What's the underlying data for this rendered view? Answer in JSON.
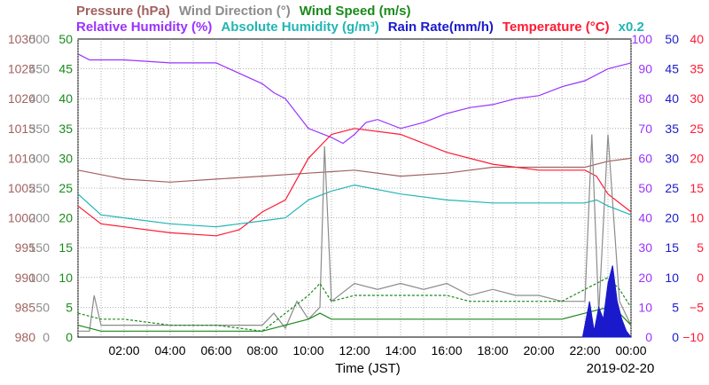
{
  "header": {
    "row1": [
      {
        "text": "Pressure (hPa)",
        "color": "#a0625f"
      },
      {
        "text": "Wind Direction (°)",
        "color": "#8c8c8c"
      },
      {
        "text": "Wind Speed (m/s)",
        "color": "#1a8a1a"
      }
    ],
    "row2": [
      {
        "text": "Relative Humidity (%)",
        "color": "#9933ff"
      },
      {
        "text": "Absolute Humidity (g/m³)",
        "color": "#22b5b5"
      },
      {
        "text": "Rain Rate(mm/h)",
        "color": "#1a1acc"
      },
      {
        "text": "Temperature (°C)",
        "color": "#ff1a33"
      },
      {
        "text": "x0.2",
        "color": "#22b5b5"
      }
    ]
  },
  "chart_data": {
    "type": "line",
    "xlabel": "Time (JST)",
    "date_label": "2019-02-20",
    "x_ticks": [
      "02:00",
      "04:00",
      "06:00",
      "08:00",
      "10:00",
      "12:00",
      "14:00",
      "16:00",
      "18:00",
      "20:00",
      "22:00",
      "00:00"
    ],
    "grid": true,
    "x_range": [
      "2019-02-19 00:00",
      "2019-02-20 00:00"
    ],
    "left_axes": [
      {
        "name": "Pressure (hPa)",
        "color": "#a0625f",
        "ticks": [
          980,
          985,
          990,
          995,
          1000,
          1005,
          1010,
          1015,
          1020,
          1025,
          1030
        ]
      },
      {
        "name": "Wind Direction (°)",
        "color": "#8c8c8c",
        "ticks": [
          0,
          50,
          100,
          150,
          200,
          250,
          300,
          350,
          400,
          450,
          500
        ]
      },
      {
        "name": "Wind Speed (m/s)",
        "color": "#1a8a1a",
        "ticks": [
          0,
          5,
          10,
          15,
          20,
          25,
          30,
          35,
          40,
          45,
          50
        ]
      }
    ],
    "right_axes": [
      {
        "name": "Relative Humidity (%)",
        "color": "#9933ff",
        "ticks": [
          0,
          10,
          20,
          30,
          40,
          50,
          60,
          70,
          80,
          90,
          100
        ]
      },
      {
        "name": "Rain Rate (mm/h)",
        "color": "#1a1acc",
        "ticks": [
          0,
          5,
          10,
          15,
          20,
          25,
          30,
          35,
          40,
          45,
          50
        ]
      },
      {
        "name": "Temperature (°C)",
        "color": "#ff1a33",
        "ticks": [
          -10,
          -5,
          0,
          5,
          10,
          15,
          20,
          25,
          30,
          35,
          40
        ]
      }
    ],
    "series": [
      {
        "name": "Pressure (hPa)",
        "color": "#a0625f",
        "axis": "pressure",
        "x": [
          0,
          2,
          4,
          6,
          8,
          10,
          12,
          14,
          16,
          18,
          20,
          22,
          23,
          24
        ],
        "y": [
          1008,
          1006.5,
          1006,
          1006.5,
          1007,
          1007.5,
          1008,
          1007,
          1007.5,
          1008.5,
          1008.5,
          1008.5,
          1009.5,
          1010
        ]
      },
      {
        "name": "Relative Humidity (%)",
        "color": "#9933ff",
        "axis": "rh",
        "x": [
          0,
          0.5,
          2,
          4,
          6,
          8,
          8.5,
          9,
          10,
          11,
          11.5,
          12,
          12.5,
          13,
          14,
          15,
          16,
          17,
          18,
          19,
          20,
          21,
          22,
          23,
          24
        ],
        "y": [
          95,
          93,
          93,
          92,
          92,
          85,
          82,
          80,
          70,
          67,
          65,
          68,
          72,
          73,
          70,
          72,
          75,
          77,
          78,
          80,
          81,
          84,
          86,
          90,
          92
        ]
      },
      {
        "name": "Temperature (°C)",
        "color": "#ff1a33",
        "axis": "temp",
        "x": [
          0,
          1,
          2,
          4,
          6,
          7,
          8,
          9,
          10,
          11,
          12,
          14,
          16,
          18,
          20,
          22,
          22.5,
          23,
          24
        ],
        "y": [
          12,
          9,
          8.5,
          7.5,
          7,
          8,
          11,
          13,
          20,
          24,
          25,
          24,
          21,
          19,
          18,
          18,
          17,
          14,
          11
        ]
      },
      {
        "name": "Absolute Humidity (g/m³)",
        "color": "#22b5b5",
        "axis": "rh",
        "x": [
          0,
          1,
          2,
          4,
          6,
          7,
          8,
          9,
          10,
          11,
          12,
          14,
          16,
          18,
          20,
          22,
          22.5,
          23,
          24
        ],
        "y": [
          48,
          41,
          40,
          38,
          37,
          38,
          39,
          40,
          46,
          49,
          51,
          48,
          46,
          45,
          45,
          45,
          46,
          44,
          41
        ]
      },
      {
        "name": "Wind Direction (°)",
        "color": "#8c8c8c",
        "axis": "wdir",
        "x": [
          0,
          0.5,
          0.7,
          1,
          4,
          6,
          8,
          8.5,
          9,
          9.5,
          10,
          10.5,
          10.7,
          11,
          12,
          13,
          14,
          15,
          16,
          17,
          18,
          19,
          20,
          21,
          22,
          22.3,
          22.6,
          23,
          23.5,
          24
        ],
        "y": [
          10,
          10,
          70,
          20,
          20,
          20,
          20,
          40,
          15,
          60,
          30,
          50,
          320,
          60,
          90,
          80,
          90,
          80,
          90,
          70,
          80,
          70,
          70,
          60,
          60,
          340,
          40,
          340,
          60,
          20
        ]
      },
      {
        "name": "Wind Speed (m/s)",
        "color": "#1a8a1a",
        "axis": "wspd",
        "x": [
          0,
          1,
          2,
          4,
          6,
          8,
          9,
          10,
          10.5,
          11,
          12,
          13,
          14,
          15,
          16,
          17,
          18,
          19,
          20,
          21,
          22,
          23,
          23.5,
          24
        ],
        "y": [
          2,
          1,
          1,
          1,
          1,
          1,
          2,
          3,
          4,
          3,
          3,
          3,
          3,
          3,
          3,
          3,
          3,
          3,
          3,
          3,
          4,
          5,
          4,
          2
        ]
      },
      {
        "name": "Wind Speed gust (m/s)",
        "color": "#1a8a1a",
        "axis": "wspd",
        "x": [
          0,
          1,
          2,
          4,
          6,
          8,
          9,
          10,
          10.5,
          11,
          12,
          13,
          14,
          15,
          16,
          17,
          18,
          19,
          20,
          21,
          22,
          23,
          23.5,
          24
        ],
        "y": [
          4,
          3,
          3,
          2,
          2,
          1,
          4,
          7,
          9,
          6,
          7,
          7,
          7,
          7,
          7,
          6,
          6,
          6,
          6,
          6,
          8,
          10,
          8,
          5
        ]
      },
      {
        "name": "Rain Rate (mm/h)",
        "color": "#1a1acc",
        "axis": "rain",
        "fill": true,
        "x": [
          21.9,
          22,
          22.2,
          22.4,
          22.6,
          22.8,
          23,
          23.2,
          23.4,
          23.6,
          23.8,
          24
        ],
        "y": [
          0,
          2,
          6,
          1,
          5,
          3,
          9,
          12,
          6,
          3,
          1,
          0
        ]
      }
    ]
  }
}
